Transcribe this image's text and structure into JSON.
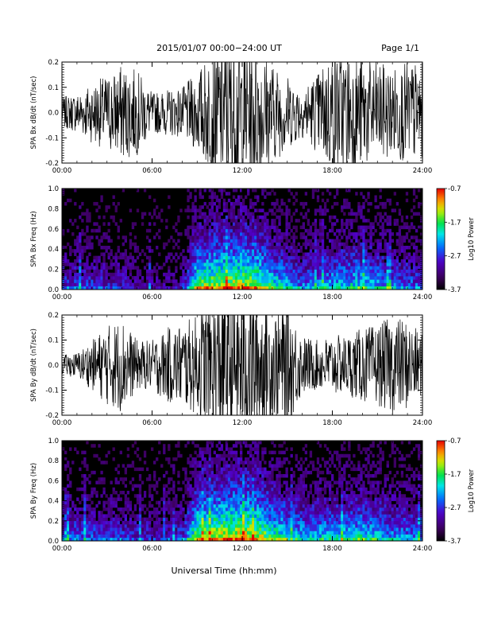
{
  "header": {
    "title": "2015/01/07  00:00−24:00 UT",
    "page": "Page 1/1"
  },
  "x_axis_title": "Universal Time (hh:mm)",
  "chart_data": [
    {
      "type": "line",
      "ylabel": "SPA Bx dB/dt (nT/sec)",
      "ylim": [
        -0.2,
        0.2
      ],
      "yticks": [
        "-0.2",
        "-0.1",
        "0.0",
        "0.1",
        "0.2"
      ],
      "xlim": [
        "00:00",
        "24:00"
      ],
      "xticks": [
        "00:00",
        "06:00",
        "12:00",
        "18:00",
        "24:00"
      ],
      "envelope_hours": [
        0,
        1,
        2,
        3,
        4,
        5,
        6,
        7,
        8,
        9,
        10,
        11,
        12,
        13,
        14,
        15,
        16,
        17,
        18,
        19,
        20,
        21,
        22,
        23,
        24
      ],
      "envelope_amplitude": [
        0.06,
        0.08,
        0.12,
        0.15,
        0.19,
        0.17,
        0.08,
        0.09,
        0.1,
        0.16,
        0.25,
        0.3,
        0.3,
        0.28,
        0.2,
        0.15,
        0.1,
        0.16,
        0.25,
        0.25,
        0.22,
        0.2,
        0.18,
        0.2,
        0.2
      ],
      "color": "#000000"
    },
    {
      "type": "heatmap",
      "ylabel": "SPA Bx Freq (Hz)",
      "ylim": [
        0.0,
        1.0
      ],
      "yticks": [
        "0.0",
        "0.2",
        "0.4",
        "0.6",
        "0.8",
        "1.0"
      ],
      "xlim": [
        "00:00",
        "24:00"
      ],
      "xticks": [
        "00:00",
        "06:00",
        "12:00",
        "18:00",
        "24:00"
      ],
      "colorbar": {
        "label": "Log10 Power",
        "min": -3.7,
        "max": -0.7,
        "ticks": [
          "-0.7",
          "-1.7",
          "-2.7",
          "-3.7"
        ]
      },
      "activity_hours": [
        0,
        2,
        4,
        6,
        8,
        9,
        10,
        12,
        13,
        14,
        16,
        18,
        20,
        22,
        24
      ],
      "activity_level": [
        0.35,
        0.35,
        0.3,
        0.2,
        0.25,
        0.75,
        0.8,
        0.85,
        0.8,
        0.65,
        0.45,
        0.55,
        0.6,
        0.45,
        0.4
      ]
    },
    {
      "type": "line",
      "ylabel": "SPA By dB/dt (nT/sec)",
      "ylim": [
        -0.2,
        0.2
      ],
      "yticks": [
        "-0.2",
        "-0.1",
        "0.0",
        "0.1",
        "0.2"
      ],
      "xlim": [
        "00:00",
        "24:00"
      ],
      "xticks": [
        "00:00",
        "06:00",
        "12:00",
        "18:00",
        "24:00"
      ],
      "envelope_hours": [
        0,
        1,
        2,
        3,
        4,
        5,
        6,
        7,
        8,
        9,
        10,
        11,
        12,
        13,
        14,
        15,
        16,
        17,
        18,
        19,
        20,
        21,
        22,
        23,
        24
      ],
      "envelope_amplitude": [
        0.04,
        0.05,
        0.1,
        0.16,
        0.19,
        0.1,
        0.1,
        0.15,
        0.17,
        0.2,
        0.3,
        0.3,
        0.3,
        0.3,
        0.22,
        0.25,
        0.12,
        0.1,
        0.12,
        0.12,
        0.15,
        0.16,
        0.2,
        0.18,
        0.12
      ],
      "color": "#000000"
    },
    {
      "type": "heatmap",
      "ylabel": "SPA By Freq (Hz)",
      "ylim": [
        0.0,
        1.0
      ],
      "yticks": [
        "0.0",
        "0.2",
        "0.4",
        "0.6",
        "0.8",
        "1.0"
      ],
      "xlim": [
        "00:00",
        "24:00"
      ],
      "xticks": [
        "00:00",
        "06:00",
        "12:00",
        "18:00",
        "24:00"
      ],
      "colorbar": {
        "label": "Log10 Power",
        "min": -3.7,
        "max": -0.7,
        "ticks": [
          "-0.7",
          "-1.7",
          "-2.7",
          "-3.7"
        ]
      },
      "activity_hours": [
        0,
        2,
        4,
        6,
        8,
        9,
        10,
        12,
        13,
        14,
        16,
        18,
        20,
        22,
        24
      ],
      "activity_level": [
        0.4,
        0.4,
        0.35,
        0.3,
        0.35,
        0.8,
        0.85,
        0.9,
        0.85,
        0.7,
        0.55,
        0.55,
        0.6,
        0.5,
        0.45
      ]
    }
  ]
}
